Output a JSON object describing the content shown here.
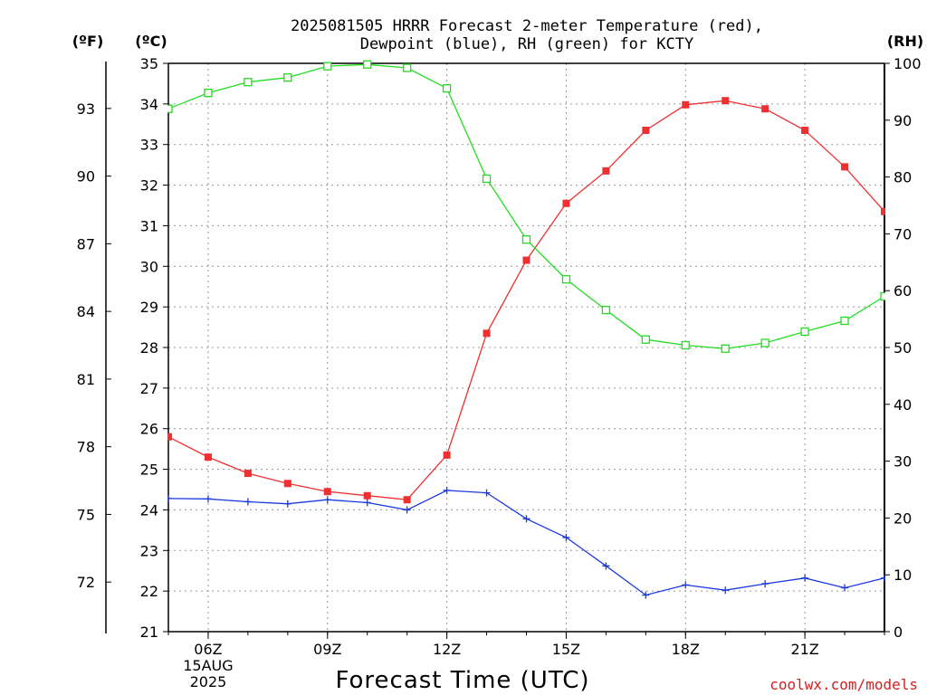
{
  "chart_data": {
    "type": "line",
    "title_line1": "2025081505 HRRR Forecast 2-meter Temperature (red),",
    "title_line2": "Dewpoint (blue), RH (green) for KCTY",
    "xlabel": "Forecast Time (UTC)",
    "unit_f": "(ºF)",
    "unit_c": "(ºC)",
    "unit_rh": "(RH)",
    "credit": "coolwx.com/models",
    "x_hours": [
      5,
      6,
      7,
      8,
      9,
      10,
      11,
      12,
      13,
      14,
      15,
      16,
      17,
      18,
      19,
      20,
      21,
      22,
      23
    ],
    "x_ticks": [
      {
        "hour": 6,
        "label": "06Z",
        "label2": "15AUG",
        "label3": "2025"
      },
      {
        "hour": 9,
        "label": "09Z"
      },
      {
        "hour": 12,
        "label": "12Z"
      },
      {
        "hour": 15,
        "label": "15Z"
      },
      {
        "hour": 18,
        "label": "18Z"
      },
      {
        "hour": 21,
        "label": "21Z"
      }
    ],
    "xlim": [
      5,
      23
    ],
    "ylim_c": [
      21,
      35
    ],
    "ylim_rh": [
      0,
      100
    ],
    "c_ticks": [
      21,
      22,
      23,
      24,
      25,
      26,
      27,
      28,
      29,
      30,
      31,
      32,
      33,
      34,
      35
    ],
    "f_ticks": [
      72,
      75,
      78,
      81,
      84,
      87,
      90,
      93
    ],
    "rh_ticks": [
      0,
      10,
      20,
      30,
      40,
      50,
      60,
      70,
      80,
      90,
      100
    ],
    "grid": true,
    "series": [
      {
        "name": "Temperature",
        "color": "#ee3030",
        "marker": "filled-square",
        "axis": "C",
        "values": [
          25.8,
          25.3,
          24.9,
          24.65,
          24.45,
          24.35,
          24.25,
          25.35,
          28.35,
          30.15,
          31.55,
          32.35,
          33.35,
          33.98,
          34.08,
          33.88,
          33.35,
          32.45,
          31.35
        ]
      },
      {
        "name": "Dewpoint",
        "color": "#1a3ae0",
        "marker": "plus",
        "axis": "C",
        "values": [
          24.28,
          24.27,
          24.2,
          24.15,
          24.25,
          24.18,
          24.0,
          24.48,
          24.42,
          23.78,
          23.32,
          22.62,
          21.9,
          22.15,
          22.02,
          22.18,
          22.32,
          22.08,
          22.32
        ]
      },
      {
        "name": "RH",
        "color": "#22dd22",
        "marker": "open-square",
        "axis": "RH",
        "values": [
          92,
          94.8,
          96.7,
          97.5,
          99.5,
          99.8,
          99.2,
          95.6,
          79.7,
          69,
          62,
          56.6,
          51.4,
          50.4,
          49.8,
          50.8,
          52.8,
          54.7,
          59
        ]
      }
    ]
  }
}
